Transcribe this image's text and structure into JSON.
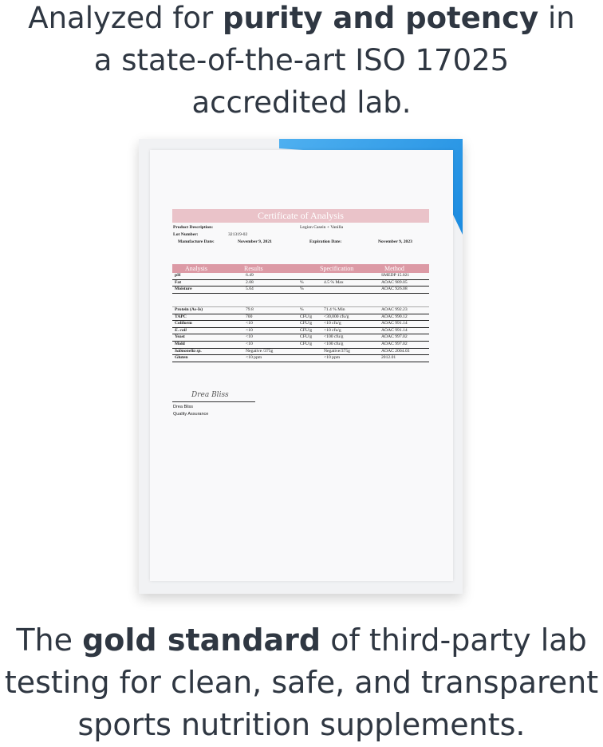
{
  "headline_top": {
    "line1_pre": "Analyzed for ",
    "line1_bold": "purity and potency",
    "line1_post": " in",
    "line2": "a state-of-the-art ISO 17025",
    "line3": "accredited lab."
  },
  "headline_bottom": {
    "line1_pre": "The ",
    "line1_bold": "gold standard",
    "line1_post": " of third-party lab",
    "line2": "testing for clean, safe, and transparent",
    "line3": "sports nutrition supplements."
  },
  "certificate": {
    "title": "Certificate of Analysis",
    "product_label": "Product Description:",
    "product_value": "Legion Casein + Vanilla",
    "lot_label": "Lot Number:",
    "lot_value": "321319-02",
    "mfg_label": "Manufacture Date:",
    "mfg_value": "November 9, 2021",
    "exp_label": "Expiration Date:",
    "exp_value": "November 9, 2023",
    "columns": [
      "Analysis",
      "Results",
      "Specification",
      "Method"
    ],
    "group1": [
      {
        "analysis": "pH",
        "result": "6.49",
        "unit": "",
        "spec": "",
        "method": "SMEDP 15.021"
      },
      {
        "analysis": "Fat",
        "result": "2.08",
        "unit": "%",
        "spec": "4.5 % Max",
        "method": "AOAC 989.05"
      },
      {
        "analysis": "Moisture",
        "result": "5.64",
        "unit": "%",
        "spec": "",
        "method": "AOAC 926.08"
      }
    ],
    "group2": [
      {
        "analysis": "Protein (As-Is)",
        "result": "79.8",
        "unit": "%",
        "spec": "71.4 % Min",
        "method": "AOAC 992.23"
      },
      {
        "analysis": "TAPC",
        "result": "700",
        "unit": "CFU/g",
        "spec": "<30,000 cfu/g",
        "method": "AOAC 990.12"
      },
      {
        "analysis": "Coliform",
        "result": "<10",
        "unit": "CFU/g",
        "spec": "<10 cfu/g",
        "method": "AOAC 991.14"
      },
      {
        "analysis": "E. coli",
        "result": "<10",
        "unit": "CFU/g",
        "spec": "<10 cfu/g",
        "method": "AOAC 991.14"
      },
      {
        "analysis": "Yeast",
        "result": "<10",
        "unit": "CFU/g",
        "spec": "<100 cfu/g",
        "method": "AOAC 997.02"
      },
      {
        "analysis": "Mold",
        "result": "<10",
        "unit": "CFU/g",
        "spec": "<100 cfu/g",
        "method": "AOAC 997.02"
      },
      {
        "analysis": "Salmonella sp.",
        "result": "Negative /375g",
        "unit": "",
        "spec": "Negative/375g",
        "method": "AOAC 2004.03"
      },
      {
        "analysis": "Gluten",
        "result": "<10 ppm",
        "unit": "",
        "spec": "<10 ppm",
        "method": "2012.01"
      }
    ],
    "signature": "Drea Bliss",
    "signer_name": "Drea Bliss",
    "signer_title": "Quality Assurance"
  },
  "colors": {
    "text": "#2f3742",
    "title_bar": "#eac3c9",
    "header_bar": "#dc9aa5",
    "accent_blue": "#1a8be0"
  }
}
